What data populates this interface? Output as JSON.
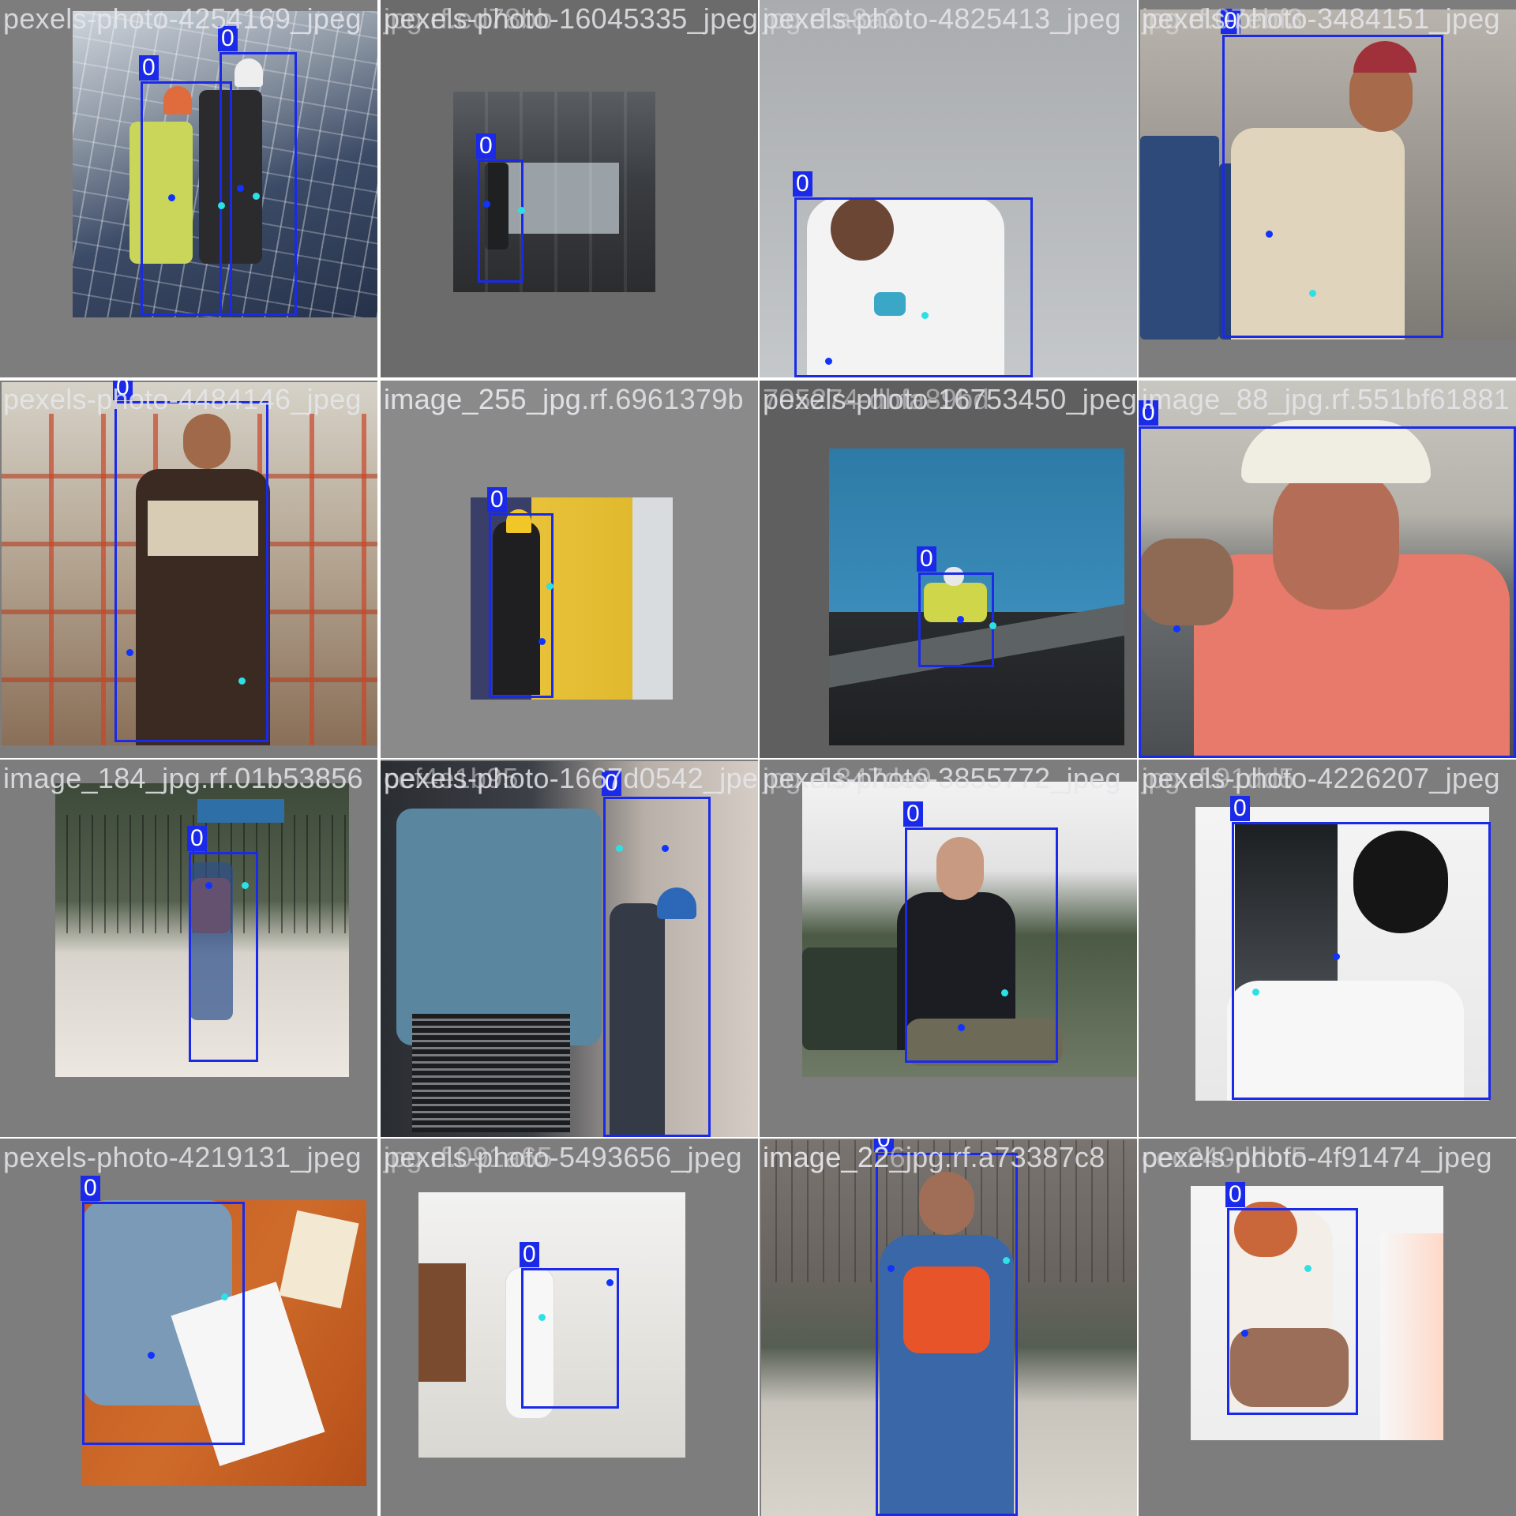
{
  "colors": {
    "box": "#1a2ae8",
    "keypoint_primary": "#1033ff",
    "keypoint_secondary": "#2de0e6",
    "label_text": "#e6e6eb",
    "tile_gray": "#7a7a7a"
  },
  "tiles": [
    {
      "filename": "pexels-photo-4254169_jpeg",
      "labels": [
        "0",
        "0"
      ]
    },
    {
      "filename": "pexels-photo-16045335_jpeg",
      "overlay": "jpg.rf.ed78bb",
      "labels": [
        "0"
      ]
    },
    {
      "filename": "pexels-photo-4825413_jpeg",
      "overlay": "jpg.rf.a8a3",
      "labels": [
        "0"
      ]
    },
    {
      "filename": "pexels-photo-3484151_jpeg",
      "overlay": "jpg.rf.07ebf3",
      "labels": [
        "0"
      ]
    },
    {
      "filename": "pexels-photo-4484146_jpeg",
      "labels": [
        "0"
      ]
    },
    {
      "filename": "image_255_jpg.rf.6961379b",
      "overlay": "image_256_jpg",
      "labels": [
        "0"
      ]
    },
    {
      "filename": "pexels-photo-16753450_jpeg",
      "overlay": "705274-dbfa89bd",
      "labels": [
        "0"
      ]
    },
    {
      "filename": "image_88_jpg.rf.551bf61881",
      "labels": [
        "0"
      ]
    },
    {
      "filename": "image_184_jpg.rf.01b53856",
      "labels": [
        "0"
      ]
    },
    {
      "filename": "pexels-photo-1667d0542_jpeg",
      "overlay": "cef4e1b95",
      "labels": [
        "0"
      ]
    },
    {
      "filename": "pexels-photo-3855772_jpeg",
      "overlay": "jpg.rf.847de9",
      "labels": [
        "0"
      ]
    },
    {
      "filename": "pexels-photo-4226207_jpeg",
      "overlay": "jpg.rf.91dd5",
      "labels": [
        "0"
      ]
    },
    {
      "filename": "pexels-photo-4219131_jpeg",
      "labels": [
        "0"
      ]
    },
    {
      "filename": "pexels-photo-5493656_jpeg",
      "overlay": "jpg.rf.091a65",
      "labels": [
        "0"
      ]
    },
    {
      "filename": "image_22_jpg.rf.a73387c8",
      "overlay": "image_226",
      "labels": [
        "0"
      ]
    },
    {
      "filename": "pexels-photo-4f91474_jpeg",
      "overlay": "cec240ddbf5",
      "labels": [
        "0"
      ]
    }
  ]
}
